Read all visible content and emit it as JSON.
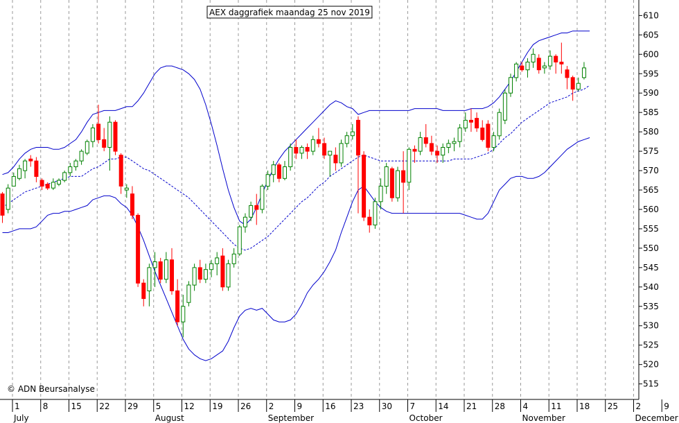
{
  "chart_data": {
    "type": "candlestick",
    "title": "AEX daggrafiek maandag 25 nov 2019",
    "copyright": "© ADN Beursanalyse",
    "ylim": [
      511,
      614
    ],
    "y_ticks": [
      515,
      520,
      525,
      530,
      535,
      540,
      545,
      550,
      555,
      560,
      565,
      570,
      575,
      580,
      585,
      590,
      595,
      600,
      605,
      610
    ],
    "grid": "vertical dashed, weekly",
    "colors": {
      "up": "#008000",
      "down": "#ff0000",
      "bands": "#0000cc",
      "moving_average": "#0000cc"
    },
    "day_labels": [
      "1",
      "8",
      "15",
      "22",
      "29",
      "5",
      "12",
      "19",
      "26",
      "2",
      "9",
      "16",
      "23",
      "30",
      "7",
      "14",
      "21",
      "28",
      "4",
      "11",
      "18",
      "25",
      "2",
      "9"
    ],
    "month_labels": [
      "July",
      "August",
      "September",
      "October",
      "November",
      "December"
    ],
    "candles": [
      [
        564.0,
        564.5,
        556.5,
        558.5
      ],
      [
        560.0,
        566.5,
        559.0,
        565.5
      ],
      [
        566.0,
        569.5,
        566.0,
        568.5
      ],
      [
        568.0,
        571.5,
        567.5,
        570.5
      ],
      [
        570.0,
        573.0,
        568.0,
        572.5
      ],
      [
        573.0,
        574.0,
        571.0,
        572.5
      ],
      [
        572.5,
        573.5,
        567.0,
        568.5
      ],
      [
        567.5,
        568.0,
        565.0,
        566.0
      ],
      [
        566.5,
        567.0,
        565.0,
        565.5
      ],
      [
        565.5,
        568.0,
        565.0,
        567.0
      ],
      [
        566.5,
        568.0,
        566.0,
        567.5
      ],
      [
        567.5,
        570.0,
        567.0,
        569.5
      ],
      [
        569.5,
        572.0,
        568.5,
        571.0
      ],
      [
        571.0,
        573.0,
        570.0,
        572.5
      ],
      [
        572.5,
        575.5,
        571.5,
        575.0
      ],
      [
        574.5,
        578.0,
        574.0,
        577.5
      ],
      [
        577.5,
        582.0,
        576.0,
        581.0
      ],
      [
        582.0,
        587.0,
        577.0,
        578.0
      ],
      [
        578.0,
        581.0,
        575.0,
        576.0
      ],
      [
        576.0,
        584.0,
        570.0,
        582.5
      ],
      [
        582.5,
        583.0,
        574.0,
        575.0
      ],
      [
        574.0,
        574.5,
        564.0,
        566.0
      ],
      [
        565.0,
        566.5,
        563.0,
        565.5
      ],
      [
        564.0,
        566.0,
        557.5,
        558.5
      ],
      [
        558.5,
        559.0,
        540.0,
        541.0
      ],
      [
        541.0,
        542.0,
        535.0,
        537.0
      ],
      [
        539.0,
        546.0,
        535.0,
        545.0
      ],
      [
        545.0,
        549.0,
        540.0,
        546.5
      ],
      [
        546.5,
        547.5,
        541.0,
        542.0
      ],
      [
        542.0,
        549.0,
        541.0,
        547.0
      ],
      [
        547.0,
        550.0,
        538.0,
        539.0
      ],
      [
        539.0,
        542.0,
        530.0,
        531.0
      ],
      [
        531.0,
        538.0,
        527.0,
        535.0
      ],
      [
        536.0,
        541.5,
        535.0,
        540.5
      ],
      [
        540.5,
        546.0,
        539.0,
        545.0
      ],
      [
        545.0,
        547.0,
        541.0,
        542.0
      ],
      [
        542.0,
        546.0,
        541.0,
        544.5
      ],
      [
        544.5,
        547.0,
        542.5,
        546.0
      ],
      [
        546.0,
        549.0,
        543.0,
        547.5
      ],
      [
        548.0,
        550.0,
        539.0,
        540.0
      ],
      [
        540.0,
        547.0,
        539.0,
        546.0
      ],
      [
        546.0,
        550.0,
        545.0,
        548.5
      ],
      [
        548.5,
        556.0,
        548.0,
        555.5
      ],
      [
        555.5,
        559.0,
        554.0,
        558.0
      ],
      [
        558.0,
        562.0,
        557.0,
        561.0
      ],
      [
        561.0,
        564.0,
        556.0,
        560.0
      ],
      [
        560.0,
        566.5,
        559.0,
        566.0
      ],
      [
        566.0,
        570.0,
        565.0,
        569.0
      ],
      [
        569.0,
        572.5,
        567.0,
        571.5
      ],
      [
        571.5,
        572.0,
        567.0,
        568.0
      ],
      [
        568.0,
        572.5,
        567.5,
        571.0
      ],
      [
        571.0,
        577.0,
        570.0,
        576.0
      ],
      [
        576.0,
        578.0,
        573.0,
        574.5
      ],
      [
        574.5,
        576.5,
        573.0,
        576.0
      ],
      [
        576.0,
        577.0,
        573.0,
        575.0
      ],
      [
        575.0,
        579.0,
        574.0,
        578.0
      ],
      [
        578.0,
        581.0,
        576.0,
        577.0
      ],
      [
        577.0,
        578.5,
        573.0,
        574.0
      ],
      [
        574.0,
        575.0,
        568.5,
        575.0
      ],
      [
        574.0,
        576.0,
        570.0,
        572.0
      ],
      [
        572.0,
        578.0,
        571.0,
        577.0
      ],
      [
        577.0,
        580.0,
        576.0,
        579.0
      ],
      [
        579.0,
        582.0,
        578.0,
        580.0
      ],
      [
        583.0,
        584.0,
        559.0,
        574.0
      ],
      [
        574.0,
        575.0,
        557.0,
        558.0
      ],
      [
        558.0,
        560.0,
        554.0,
        556.0
      ],
      [
        556.0,
        563.0,
        555.0,
        562.0
      ],
      [
        562.0,
        568.0,
        560.0,
        566.0
      ],
      [
        566.0,
        572.0,
        564.0,
        571.0
      ],
      [
        570.5,
        571.0,
        562.0,
        563.0
      ],
      [
        563.0,
        571.0,
        562.0,
        570.0
      ],
      [
        570.0,
        575.0,
        559.0,
        567.0
      ],
      [
        567.0,
        576.0,
        565.0,
        575.5
      ],
      [
        575.5,
        576.5,
        572.0,
        575.0
      ],
      [
        575.0,
        580.0,
        574.0,
        578.5
      ],
      [
        578.5,
        582.0,
        576.0,
        577.0
      ],
      [
        577.0,
        579.0,
        574.0,
        575.0
      ],
      [
        575.0,
        576.5,
        572.0,
        574.0
      ],
      [
        574.0,
        577.0,
        572.0,
        576.0
      ],
      [
        576.0,
        578.0,
        574.5,
        577.0
      ],
      [
        577.0,
        578.5,
        575.0,
        577.5
      ],
      [
        577.5,
        582.0,
        576.0,
        581.0
      ],
      [
        581.0,
        585.0,
        580.0,
        583.0
      ],
      [
        583.0,
        586.0,
        580.0,
        582.5
      ],
      [
        583.5,
        585.0,
        580.0,
        581.0
      ],
      [
        581.0,
        583.0,
        577.5,
        578.0
      ],
      [
        582.0,
        583.0,
        575.0,
        576.0
      ],
      [
        576.0,
        580.0,
        575.0,
        579.0
      ],
      [
        579.0,
        586.0,
        578.0,
        585.0
      ],
      [
        583.0,
        591.0,
        582.0,
        590.0
      ],
      [
        590.0,
        595.0,
        589.0,
        594.0
      ],
      [
        594.0,
        598.0,
        593.0,
        597.5
      ],
      [
        597.0,
        598.0,
        595.5,
        596.0
      ],
      [
        596.0,
        599.0,
        594.0,
        598.0
      ],
      [
        598.0,
        601.5,
        596.5,
        600.0
      ],
      [
        599.0,
        600.0,
        595.0,
        596.0
      ],
      [
        596.5,
        598.0,
        595.0,
        597.0
      ],
      [
        597.0,
        601.0,
        596.0,
        599.5
      ],
      [
        599.5,
        600.0,
        595.0,
        598.0
      ],
      [
        598.0,
        603.0,
        595.0,
        597.5
      ],
      [
        596.0,
        597.0,
        591.0,
        594.0
      ],
      [
        594.0,
        594.5,
        588.0,
        591.0
      ],
      [
        591.0,
        594.0,
        590.5,
        592.5
      ],
      [
        594.0,
        598.0,
        593.5,
        596.5
      ]
    ],
    "upper_band": [
      569.0,
      569.5,
      571.0,
      573.0,
      574.5,
      575.5,
      576.0,
      576.0,
      576.0,
      575.5,
      575.5,
      576.0,
      577.0,
      578.0,
      580.0,
      582.5,
      584.5,
      585.0,
      585.5,
      585.5,
      585.5,
      586.0,
      586.5,
      586.5,
      588.0,
      590.0,
      592.5,
      595.0,
      596.5,
      597.0,
      597.0,
      596.5,
      596.0,
      595.0,
      593.5,
      591.0,
      587.0,
      582.0,
      576.5,
      570.5,
      565.0,
      560.5,
      557.0,
      556.0,
      557.5,
      560.5,
      564.0,
      567.5,
      570.5,
      573.0,
      575.0,
      576.5,
      578.0,
      579.5,
      581.0,
      582.5,
      584.0,
      585.5,
      587.0,
      588.0,
      587.5,
      586.5,
      586.0,
      584.5,
      585.0,
      585.5,
      585.5,
      585.5,
      585.5,
      585.5,
      585.5,
      585.5,
      585.5,
      586.0,
      586.0,
      586.0,
      586.0,
      586.0,
      585.5,
      585.5,
      585.5,
      585.5,
      585.5,
      586.0,
      586.0,
      586.0,
      586.5,
      587.5,
      589.0,
      591.0,
      593.0,
      595.5,
      598.0,
      600.5,
      602.5,
      603.5,
      604.0,
      604.5,
      605.0,
      605.5,
      605.5,
      606.0,
      606.0,
      606.0,
      606.0
    ],
    "moving_average": [
      560.5,
      561.5,
      562.5,
      563.5,
      564.5,
      565.0,
      565.5,
      566.0,
      566.5,
      567.0,
      567.5,
      568.0,
      568.5,
      568.5,
      568.5,
      569.5,
      570.5,
      571.0,
      572.0,
      573.0,
      573.0,
      573.5,
      573.5,
      572.5,
      571.5,
      570.5,
      570.0,
      569.0,
      568.0,
      567.0,
      566.0,
      565.0,
      564.0,
      563.0,
      561.5,
      560.0,
      558.5,
      557.0,
      555.5,
      554.0,
      552.5,
      551.0,
      550.0,
      549.5,
      550.0,
      551.0,
      552.0,
      553.0,
      554.5,
      556.0,
      557.5,
      559.0,
      560.5,
      562.0,
      563.0,
      564.5,
      566.0,
      567.0,
      568.5,
      569.5,
      570.5,
      571.5,
      572.5,
      573.5,
      574.0,
      573.5,
      573.0,
      572.5,
      572.5,
      572.5,
      572.5,
      572.5,
      572.5,
      572.5,
      572.5,
      572.5,
      572.5,
      572.5,
      572.5,
      572.5,
      573.0,
      573.0,
      573.0,
      573.0,
      573.5,
      574.0,
      574.5,
      575.5,
      577.0,
      578.5,
      579.5,
      581.0,
      582.5,
      583.5,
      584.5,
      585.5,
      586.5,
      587.5,
      588.0,
      588.5,
      589.0,
      590.0,
      590.5,
      591.0,
      592.0
    ],
    "lower_band": [
      554.0,
      554.0,
      554.5,
      555.0,
      555.0,
      555.0,
      555.5,
      557.0,
      558.5,
      559.0,
      559.0,
      559.5,
      559.5,
      560.0,
      560.5,
      561.0,
      562.5,
      563.0,
      563.5,
      563.5,
      563.0,
      561.5,
      560.5,
      558.5,
      555.5,
      552.0,
      548.0,
      544.0,
      540.5,
      537.0,
      533.5,
      530.0,
      526.5,
      524.0,
      522.5,
      521.5,
      521.0,
      521.5,
      522.5,
      523.5,
      526.0,
      529.5,
      532.5,
      534.0,
      534.5,
      534.0,
      534.5,
      533.0,
      531.5,
      531.0,
      531.0,
      531.5,
      533.0,
      535.5,
      538.5,
      540.5,
      542.0,
      544.0,
      546.5,
      549.5,
      554.0,
      558.0,
      562.0,
      565.0,
      566.0,
      564.0,
      562.0,
      560.5,
      559.5,
      559.0,
      559.0,
      559.0,
      559.0,
      559.0,
      559.0,
      559.0,
      559.0,
      559.0,
      559.0,
      559.0,
      559.0,
      559.0,
      558.5,
      558.0,
      557.5,
      557.5,
      559.0,
      562.0,
      565.0,
      566.5,
      568.0,
      568.5,
      568.5,
      568.0,
      568.0,
      568.5,
      569.5,
      571.0,
      572.5,
      574.0,
      575.5,
      576.5,
      577.5,
      578.0,
      578.5
    ]
  }
}
